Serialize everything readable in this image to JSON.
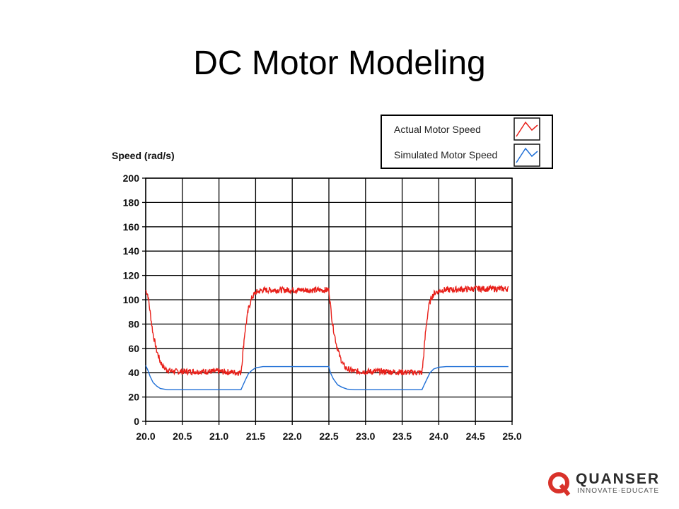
{
  "slide": {
    "title": "DC Motor Modeling"
  },
  "logo": {
    "name": "QUANSER",
    "tagline": "INNOVATE·EDUCATE",
    "accent": "#d9322a",
    "letter_icon": "q-logo-icon"
  },
  "chart_data": {
    "type": "line",
    "title": "",
    "xlabel": "",
    "ylabel": "Speed (rad/s)",
    "xlim": [
      20.0,
      25.0
    ],
    "ylim": [
      0,
      200
    ],
    "x_ticks": [
      "20.0",
      "20.5",
      "21.0",
      "21.5",
      "22.0",
      "22.5",
      "23.0",
      "23.5",
      "24.0",
      "24.5",
      "25.0"
    ],
    "y_ticks": [
      "0",
      "20",
      "40",
      "60",
      "80",
      "100",
      "120",
      "140",
      "160",
      "180",
      "200"
    ],
    "grid": true,
    "legend": {
      "placement": "top-right",
      "entries": [
        "Actual Motor Speed",
        "Simulated Motor Speed"
      ]
    },
    "series": [
      {
        "name": "Actual Motor Speed",
        "color": "#e8201a",
        "noisy": true,
        "points": [
          [
            20.0,
            108
          ],
          [
            20.03,
            104
          ],
          [
            20.06,
            90
          ],
          [
            20.1,
            72
          ],
          [
            20.15,
            58
          ],
          [
            20.2,
            49
          ],
          [
            20.25,
            44
          ],
          [
            20.3,
            42
          ],
          [
            20.4,
            41
          ],
          [
            20.6,
            41
          ],
          [
            21.0,
            41
          ],
          [
            21.3,
            40
          ],
          [
            21.32,
            52
          ],
          [
            21.35,
            72
          ],
          [
            21.4,
            92
          ],
          [
            21.45,
            102
          ],
          [
            21.5,
            106
          ],
          [
            21.6,
            108
          ],
          [
            22.0,
            108
          ],
          [
            22.5,
            108
          ],
          [
            22.52,
            96
          ],
          [
            22.55,
            80
          ],
          [
            22.6,
            64
          ],
          [
            22.65,
            53
          ],
          [
            22.7,
            46
          ],
          [
            22.75,
            43
          ],
          [
            22.85,
            41
          ],
          [
            23.2,
            41
          ],
          [
            23.77,
            40
          ],
          [
            23.79,
            52
          ],
          [
            23.82,
            74
          ],
          [
            23.86,
            94
          ],
          [
            23.9,
            102
          ],
          [
            23.95,
            106
          ],
          [
            24.05,
            108
          ],
          [
            24.5,
            109
          ],
          [
            24.95,
            109
          ]
        ]
      },
      {
        "name": "Simulated Motor Speed",
        "color": "#1f6fd6",
        "noisy": false,
        "points": [
          [
            20.0,
            46
          ],
          [
            20.03,
            42
          ],
          [
            20.06,
            37
          ],
          [
            20.1,
            32
          ],
          [
            20.15,
            29
          ],
          [
            20.2,
            27
          ],
          [
            20.3,
            26
          ],
          [
            21.3,
            26
          ],
          [
            21.33,
            30
          ],
          [
            21.36,
            34
          ],
          [
            21.4,
            39
          ],
          [
            21.45,
            42
          ],
          [
            21.5,
            44
          ],
          [
            21.6,
            45
          ],
          [
            22.5,
            45
          ],
          [
            22.52,
            40
          ],
          [
            22.56,
            35
          ],
          [
            22.62,
            30
          ],
          [
            22.68,
            28
          ],
          [
            22.75,
            26.5
          ],
          [
            22.85,
            26
          ],
          [
            23.77,
            26
          ],
          [
            23.8,
            30
          ],
          [
            23.84,
            35
          ],
          [
            23.88,
            40
          ],
          [
            23.93,
            43
          ],
          [
            24.0,
            44.5
          ],
          [
            24.1,
            45
          ],
          [
            24.95,
            45
          ]
        ]
      }
    ]
  }
}
